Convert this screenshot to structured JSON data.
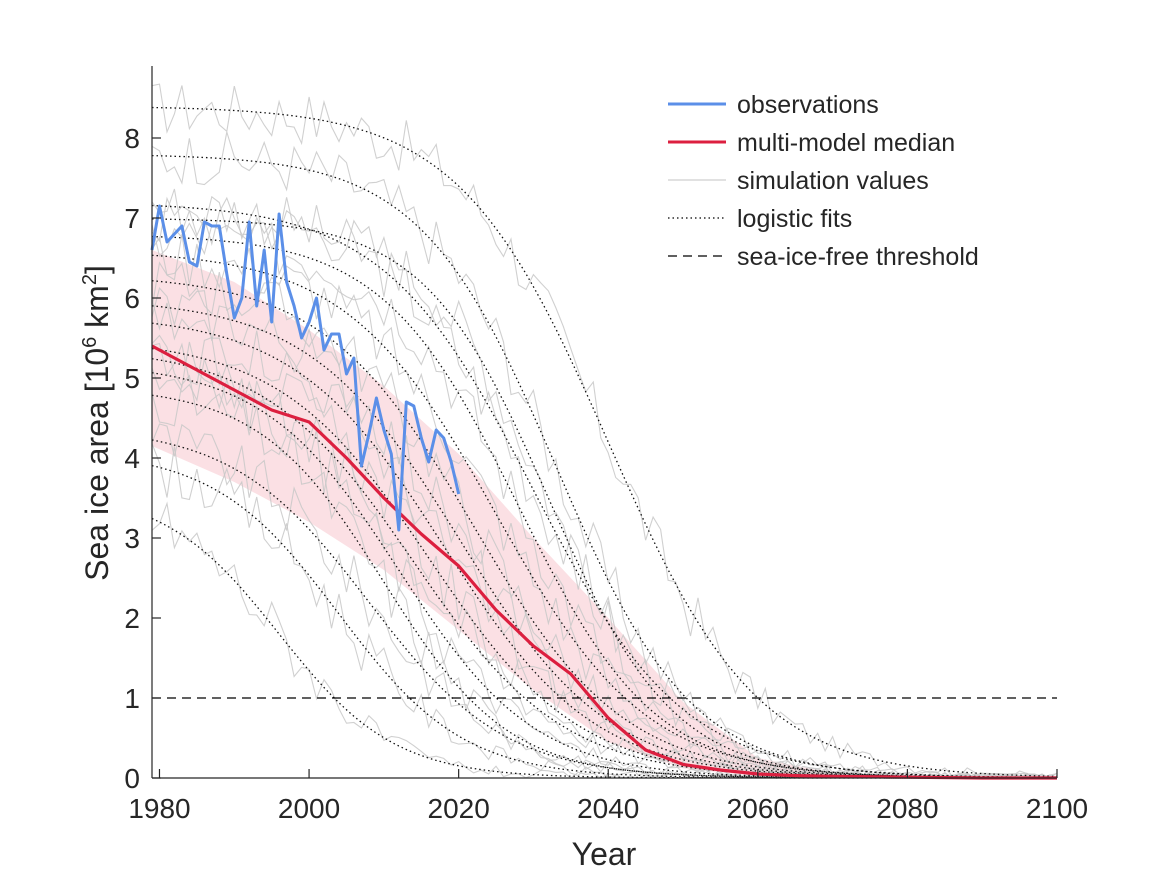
{
  "chart_data": {
    "type": "line",
    "xlabel": "Year",
    "ylabel": "Sea ice area [10",
    "ylabel_exponent": "6",
    "ylabel_unit": " km",
    "ylabel_unit_exponent": "2",
    "ylabel_close": "]",
    "xlim": [
      1979,
      2100
    ],
    "ylim": [
      0,
      8.9
    ],
    "x_ticks": [
      1980,
      2000,
      2020,
      2040,
      2060,
      2080,
      2100
    ],
    "y_ticks": [
      0,
      1,
      2,
      3,
      4,
      5,
      6,
      7,
      8
    ],
    "legend_position": "top-right",
    "legend": [
      {
        "label": "observations",
        "style": "solid",
        "color": "#5b8fe8"
      },
      {
        "label": "multi-model median",
        "style": "solid",
        "color": "#dc1f3f"
      },
      {
        "label": "simulation values",
        "style": "solid",
        "color": "#cfcfcf"
      },
      {
        "label": "logistic fits",
        "style": "dotted",
        "color": "#000000"
      },
      {
        "label": "sea-ice-free threshold",
        "style": "dashed",
        "color": "#000000"
      }
    ],
    "threshold": 1,
    "observations": {
      "name": "observations",
      "color": "#5b8fe8",
      "x": [
        1979,
        1980,
        1981,
        1982,
        1983,
        1984,
        1985,
        1986,
        1987,
        1988,
        1989,
        1990,
        1991,
        1992,
        1993,
        1994,
        1995,
        1996,
        1997,
        1998,
        1999,
        2000,
        2001,
        2002,
        2003,
        2004,
        2005,
        2006,
        2007,
        2008,
        2009,
        2010,
        2011,
        2012,
        2013,
        2014,
        2015,
        2016,
        2017,
        2018,
        2019,
        2020
      ],
      "y": [
        6.6,
        7.15,
        6.7,
        6.8,
        6.9,
        6.45,
        6.4,
        6.95,
        6.9,
        6.9,
        6.3,
        5.75,
        6.0,
        6.95,
        5.9,
        6.6,
        5.7,
        7.05,
        6.2,
        5.9,
        5.5,
        5.7,
        6.0,
        5.35,
        5.55,
        5.55,
        5.05,
        5.25,
        3.9,
        4.3,
        4.75,
        4.35,
        4.05,
        3.1,
        4.7,
        4.65,
        4.25,
        3.95,
        4.35,
        4.25,
        3.95,
        3.55
      ]
    },
    "median": {
      "name": "multi-model median",
      "color": "#dc1f3f",
      "x": [
        1979,
        1985,
        1990,
        1995,
        2000,
        2005,
        2010,
        2015,
        2020,
        2025,
        2030,
        2035,
        2040,
        2045,
        2050,
        2055,
        2060,
        2065,
        2070,
        2080,
        2090,
        2100
      ],
      "y": [
        5.4,
        5.1,
        4.85,
        4.6,
        4.45,
        4.0,
        3.5,
        3.05,
        2.65,
        2.1,
        1.65,
        1.3,
        0.75,
        0.35,
        0.17,
        0.1,
        0.05,
        0.03,
        0.02,
        0.01,
        0.0,
        0.0
      ]
    },
    "median_band": {
      "x": [
        1979,
        1990,
        2000,
        2010,
        2020,
        2030,
        2040,
        2050,
        2060,
        2070,
        2080,
        2090,
        2100
      ],
      "upper": [
        6.6,
        6.2,
        5.6,
        4.9,
        4.05,
        3.0,
        2.0,
        0.95,
        0.25,
        0.06,
        0.02,
        0.01,
        0.0
      ],
      "lower": [
        4.15,
        3.7,
        3.2,
        2.6,
        1.85,
        1.1,
        0.45,
        0.12,
        0.02,
        0.0,
        0.0,
        0.0,
        0.0
      ]
    },
    "logistic_fits": [
      {
        "A": 8.4,
        "x0": 2040,
        "k": 0.1
      },
      {
        "A": 7.8,
        "x0": 2033,
        "k": 0.11
      },
      {
        "A": 7.0,
        "x0": 2032,
        "k": 0.12
      },
      {
        "A": 7.2,
        "x0": 2030,
        "k": 0.1
      },
      {
        "A": 6.8,
        "x0": 2028,
        "k": 0.11
      },
      {
        "A": 6.6,
        "x0": 2025,
        "k": 0.1
      },
      {
        "A": 6.3,
        "x0": 2022,
        "k": 0.1
      },
      {
        "A": 6.0,
        "x0": 2020,
        "k": 0.1
      },
      {
        "A": 5.8,
        "x0": 2018,
        "k": 0.1
      },
      {
        "A": 5.5,
        "x0": 2016,
        "k": 0.1
      },
      {
        "A": 5.4,
        "x0": 2014,
        "k": 0.1
      },
      {
        "A": 5.2,
        "x0": 2012,
        "k": 0.11
      },
      {
        "A": 4.9,
        "x0": 2010,
        "k": 0.12
      },
      {
        "A": 4.4,
        "x0": 2008,
        "k": 0.11
      },
      {
        "A": 4.1,
        "x0": 2004,
        "k": 0.12
      },
      {
        "A": 3.6,
        "x0": 1996,
        "k": 0.13
      }
    ],
    "simulation_range": {
      "count": 16,
      "noise": 0.35
    }
  }
}
